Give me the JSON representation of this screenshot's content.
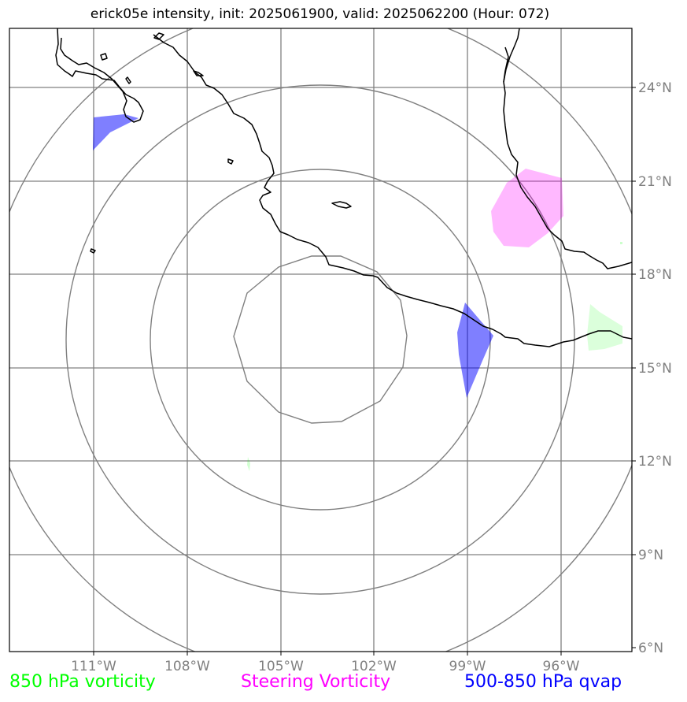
{
  "title": "erick05e intensity, init: 2025061900, valid: 2025062200 (Hour: 072)",
  "lon_ticks": [
    "111°W",
    "108°W",
    "105°W",
    "102°W",
    "99°W",
    "96°W"
  ],
  "lat_ticks": [
    "24°N",
    "21°N",
    "18°N",
    "15°N",
    "12°N",
    "9°N",
    "6°N"
  ],
  "legend": {
    "vort850": "850 hPa vorticity",
    "steering": "Steering Vorticity",
    "qvap": "500-850 hPa qvap"
  },
  "colors": {
    "vort850": "#00ff00",
    "steering": "#ff00ff",
    "qvap": "#0000ff",
    "grid": "#808080",
    "coast": "#000000"
  }
}
